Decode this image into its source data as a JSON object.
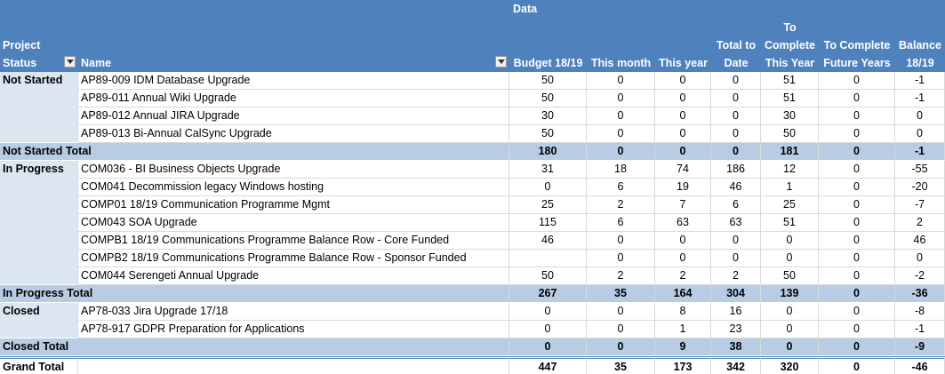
{
  "header": {
    "data_label": "Data",
    "columns": [
      "Project Status",
      "Name",
      "Budget 18/19",
      "This month",
      "This year",
      "Total to Date",
      "To Complete This Year",
      "To Complete Future Years",
      "Balance 18/19"
    ]
  },
  "groups": [
    {
      "status": "Not Started",
      "rows": [
        {
          "name": "AP89-009 IDM Database Upgrade",
          "values": [
            50,
            0,
            0,
            0,
            51,
            0,
            -1
          ]
        },
        {
          "name": "AP89-011 Annual Wiki Upgrade",
          "values": [
            50,
            0,
            0,
            0,
            51,
            0,
            -1
          ]
        },
        {
          "name": "AP89-012 Annual JIRA Upgrade",
          "values": [
            30,
            0,
            0,
            0,
            30,
            0,
            0
          ]
        },
        {
          "name": "AP89-013 Bi-Annual CalSync Upgrade",
          "values": [
            50,
            0,
            0,
            0,
            50,
            0,
            0
          ]
        }
      ],
      "total_label": "Not Started Total",
      "totals": [
        180,
        0,
        0,
        0,
        181,
        0,
        -1
      ]
    },
    {
      "status": "In Progress",
      "rows": [
        {
          "name": "COM036 - BI Business Objects Upgrade",
          "values": [
            31,
            18,
            74,
            186,
            12,
            0,
            -55
          ]
        },
        {
          "name": "COM041 Decommission legacy Windows hosting",
          "values": [
            0,
            6,
            19,
            46,
            1,
            0,
            -20
          ]
        },
        {
          "name": "COMP01 18/19 Communication Programme Mgmt",
          "values": [
            25,
            2,
            7,
            6,
            25,
            0,
            -7
          ]
        },
        {
          "name": "COM043 SOA Upgrade",
          "values": [
            115,
            6,
            63,
            63,
            51,
            0,
            2
          ]
        },
        {
          "name": "COMPB1 18/19 Communications Programme Balance Row - Core Funded",
          "values": [
            46,
            0,
            0,
            0,
            0,
            0,
            46
          ]
        },
        {
          "name": "COMPB2 18/19 Communications Programme Balance Row - Sponsor Funded",
          "values": [
            null,
            0,
            0,
            0,
            0,
            0,
            0
          ]
        },
        {
          "name": "COM044 Serengeti Annual Upgrade",
          "values": [
            50,
            2,
            2,
            2,
            50,
            0,
            -2
          ]
        }
      ],
      "total_label": "In Progress Total",
      "totals": [
        267,
        35,
        164,
        304,
        139,
        0,
        -36
      ]
    },
    {
      "status": "Closed",
      "rows": [
        {
          "name": "AP78-033 Jira Upgrade 17/18",
          "values": [
            0,
            0,
            8,
            16,
            0,
            0,
            -8
          ]
        },
        {
          "name": "AP78-917 GDPR Preparation for Applications",
          "values": [
            0,
            0,
            1,
            23,
            0,
            0,
            -1
          ]
        }
      ],
      "total_label": "Closed Total",
      "totals": [
        0,
        0,
        9,
        38,
        0,
        0,
        -9
      ]
    }
  ],
  "grand_total": {
    "label": "Grand Total",
    "values": [
      447,
      35,
      173,
      342,
      320,
      0,
      -46
    ]
  }
}
